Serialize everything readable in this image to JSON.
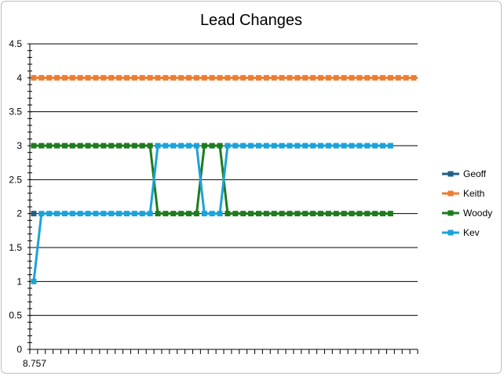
{
  "chart_data": {
    "type": "line",
    "title": "Lead Changes",
    "xlabel": "",
    "ylabel": "",
    "x_tick_label": "8.757",
    "ylim": [
      0,
      4.5
    ],
    "y_ticks": [
      "0",
      "0.5",
      "1",
      "1.5",
      "2",
      "2.5",
      "3",
      "3.5",
      "4",
      "4.5"
    ],
    "grid": "horizontal",
    "legend_position": "right",
    "num_x_slots": 50,
    "series": [
      {
        "name": "Geoff",
        "color": "#1f5f8b",
        "values": [
          2
        ]
      },
      {
        "name": "Keith",
        "color": "#ed7d31",
        "values": [
          4,
          4,
          4,
          4,
          4,
          4,
          4,
          4,
          4,
          4,
          4,
          4,
          4,
          4,
          4,
          4,
          4,
          4,
          4,
          4,
          4,
          4,
          4,
          4,
          4,
          4,
          4,
          4,
          4,
          4,
          4,
          4,
          4,
          4,
          4,
          4,
          4,
          4,
          4,
          4,
          4,
          4,
          4,
          4,
          4,
          4,
          4,
          4,
          4,
          4
        ]
      },
      {
        "name": "Woody",
        "color": "#1e7b1e",
        "values": [
          3,
          3,
          3,
          3,
          3,
          3,
          3,
          3,
          3,
          3,
          3,
          3,
          3,
          3,
          3,
          3,
          2,
          2,
          2,
          2,
          2,
          2,
          3,
          3,
          3,
          2,
          2,
          2,
          2,
          2,
          2,
          2,
          2,
          2,
          2,
          2,
          2,
          2,
          2,
          2,
          2,
          2,
          2,
          2,
          2,
          2,
          2
        ]
      },
      {
        "name": "Kev",
        "color": "#1aa3d9",
        "values": [
          1,
          2,
          2,
          2,
          2,
          2,
          2,
          2,
          2,
          2,
          2,
          2,
          2,
          2,
          2,
          2,
          3,
          3,
          3,
          3,
          3,
          3,
          2,
          2,
          2,
          3,
          3,
          3,
          3,
          3,
          3,
          3,
          3,
          3,
          3,
          3,
          3,
          3,
          3,
          3,
          3,
          3,
          3,
          3,
          3,
          3,
          3
        ]
      }
    ]
  }
}
